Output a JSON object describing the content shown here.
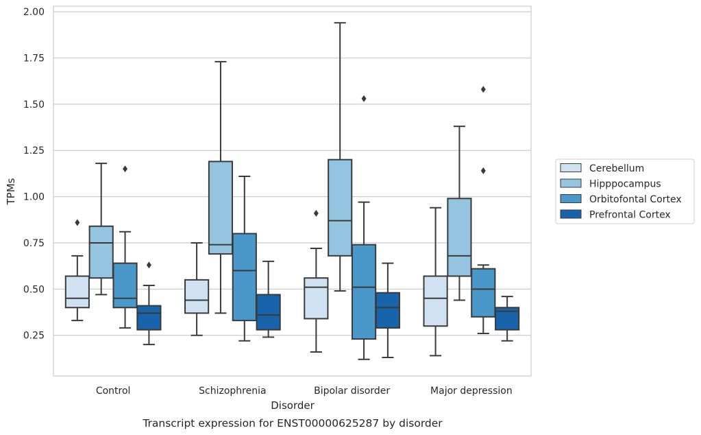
{
  "chart_data": {
    "type": "boxplot",
    "title": "Transcript expression for ENST00000625287 by disorder",
    "xlabel": "Disorder",
    "ylabel": "TPMs",
    "ylim": [
      0.03,
      2.03
    ],
    "yticks": [
      0.25,
      0.5,
      0.75,
      1.0,
      1.25,
      1.5,
      1.75,
      2.0
    ],
    "ytick_labels": [
      "0.25",
      "0.50",
      "0.75",
      "1.00",
      "1.25",
      "1.50",
      "1.75",
      "2.00"
    ],
    "categories": [
      "Control",
      "Schizophrenia",
      "Bipolar disorder",
      "Major depression"
    ],
    "grid": "horizontal",
    "legend_position": "right",
    "series": [
      {
        "name": "Cerebellum",
        "color": "#d0e1f2",
        "boxes": [
          {
            "whislo": 0.33,
            "q1": 0.4,
            "med": 0.45,
            "q3": 0.57,
            "whishi": 0.68,
            "fliers": [
              0.86
            ]
          },
          {
            "whislo": 0.25,
            "q1": 0.37,
            "med": 0.44,
            "q3": 0.55,
            "whishi": 0.75,
            "fliers": []
          },
          {
            "whislo": 0.16,
            "q1": 0.34,
            "med": 0.51,
            "q3": 0.56,
            "whishi": 0.72,
            "fliers": [
              0.91
            ]
          },
          {
            "whislo": 0.14,
            "q1": 0.3,
            "med": 0.45,
            "q3": 0.57,
            "whishi": 0.94,
            "fliers": []
          }
        ]
      },
      {
        "name": "Hipppocampus",
        "color": "#94c4df",
        "boxes": [
          {
            "whislo": 0.47,
            "q1": 0.56,
            "med": 0.75,
            "q3": 0.84,
            "whishi": 1.18,
            "fliers": []
          },
          {
            "whislo": 0.37,
            "q1": 0.69,
            "med": 0.74,
            "q3": 1.19,
            "whishi": 1.73,
            "fliers": []
          },
          {
            "whislo": 0.49,
            "q1": 0.68,
            "med": 0.87,
            "q3": 1.2,
            "whishi": 1.94,
            "fliers": []
          },
          {
            "whislo": 0.44,
            "q1": 0.57,
            "med": 0.68,
            "q3": 0.99,
            "whishi": 1.38,
            "fliers": []
          }
        ]
      },
      {
        "name": "Orbitofontal Cortex",
        "color": "#4a98c9",
        "boxes": [
          {
            "whislo": 0.29,
            "q1": 0.4,
            "med": 0.45,
            "q3": 0.64,
            "whishi": 0.81,
            "fliers": [
              1.15
            ]
          },
          {
            "whislo": 0.22,
            "q1": 0.33,
            "med": 0.6,
            "q3": 0.8,
            "whishi": 1.11,
            "fliers": []
          },
          {
            "whislo": 0.12,
            "q1": 0.23,
            "med": 0.51,
            "q3": 0.74,
            "whishi": 0.97,
            "fliers": [
              1.53
            ]
          },
          {
            "whislo": 0.26,
            "q1": 0.35,
            "med": 0.5,
            "q3": 0.61,
            "whishi": 0.63,
            "fliers": [
              1.14,
              1.58
            ]
          }
        ]
      },
      {
        "name": "Prefrontal Cortex",
        "color": "#1764ab",
        "boxes": [
          {
            "whislo": 0.2,
            "q1": 0.28,
            "med": 0.37,
            "q3": 0.41,
            "whishi": 0.52,
            "fliers": [
              0.63
            ]
          },
          {
            "whislo": 0.24,
            "q1": 0.28,
            "med": 0.36,
            "q3": 0.47,
            "whishi": 0.65,
            "fliers": []
          },
          {
            "whislo": 0.13,
            "q1": 0.29,
            "med": 0.4,
            "q3": 0.48,
            "whishi": 0.64,
            "fliers": []
          },
          {
            "whislo": 0.22,
            "q1": 0.28,
            "med": 0.38,
            "q3": 0.4,
            "whishi": 0.46,
            "fliers": []
          }
        ]
      }
    ]
  }
}
